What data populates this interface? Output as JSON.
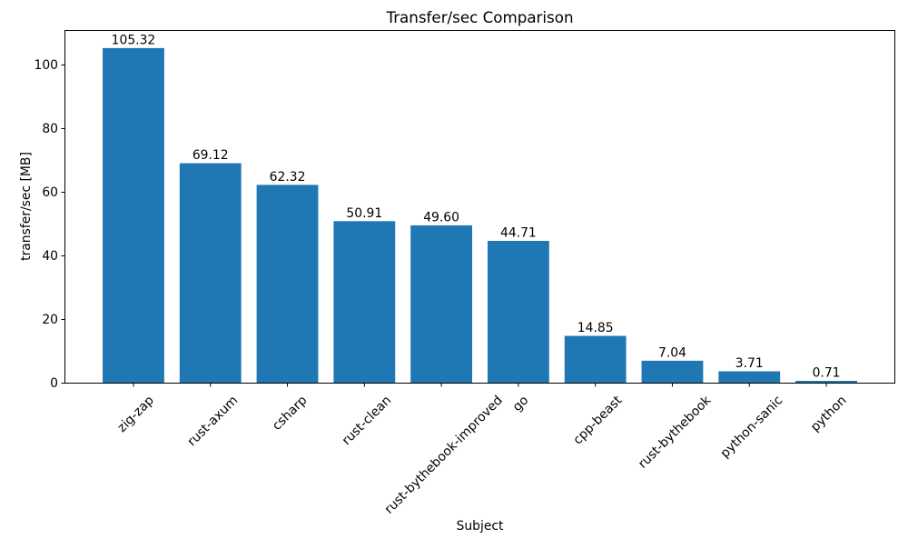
{
  "figure": {
    "background": "#ffffff"
  },
  "chart_data": {
    "type": "bar",
    "title": "Transfer/sec Comparison",
    "xlabel": "Subject",
    "ylabel": "transfer/sec [MB]",
    "categories": [
      "zig-zap",
      "rust-axum",
      "csharp",
      "rust-clean",
      "rust-bythebook-improved",
      "go",
      "cpp-beast",
      "rust-bythebook",
      "python-sanic",
      "python"
    ],
    "values": [
      105.32,
      69.12,
      62.32,
      50.91,
      49.6,
      44.71,
      14.85,
      7.04,
      3.71,
      0.71
    ],
    "value_labels": [
      "105.32",
      "69.12",
      "62.32",
      "50.91",
      "49.60",
      "44.71",
      "14.85",
      "7.04",
      "3.71",
      "0.71"
    ],
    "yticks": [
      0,
      20,
      40,
      60,
      80,
      100
    ],
    "ylim": [
      0,
      110.86
    ],
    "xtick_rotation_deg": 45,
    "bar_width_fraction": 0.8,
    "bar_color": "#1f77b4",
    "axis_color": "#000000",
    "text_color": "#000000",
    "grid": false,
    "legend": null
  }
}
